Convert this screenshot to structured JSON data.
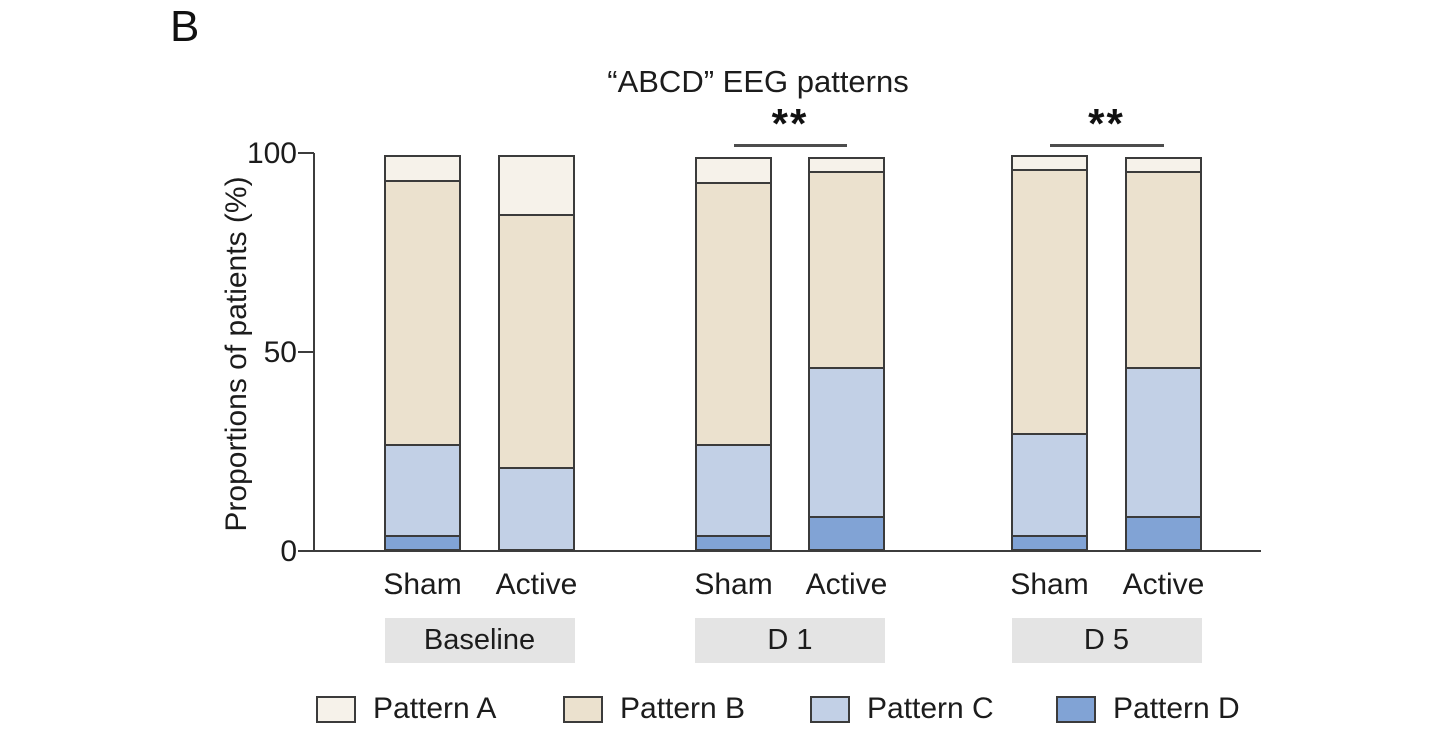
{
  "panel_label": "B",
  "title": "“ABCD” EEG patterns",
  "y_axis": {
    "label": "Proportions of patients (%)",
    "tick_labels": [
      "100",
      "50",
      "0"
    ]
  },
  "x_axis": {
    "condition_labels": [
      "Sham",
      "Active",
      "Sham",
      "Active",
      "Sham",
      "Active"
    ],
    "group_labels": [
      "Baseline",
      "D 1",
      "D 5"
    ]
  },
  "significance": [
    {
      "group": "D 1",
      "label": "**"
    },
    {
      "group": "D 5",
      "label": "**"
    }
  ],
  "legend": {
    "items": [
      {
        "label": "Pattern A",
        "color": "#f6f2ea"
      },
      {
        "label": "Pattern B",
        "color": "#ebe1ce"
      },
      {
        "label": "Pattern C",
        "color": "#c2d0e6"
      },
      {
        "label": "Pattern D",
        "color": "#81a3d5"
      }
    ]
  },
  "colors": {
    "pattern_a": "#f6f2ea",
    "pattern_b": "#ebe1ce",
    "pattern_c": "#c2d0e6",
    "pattern_d": "#81a3d5",
    "bar_border": "#3b3b3b",
    "axis": "#3c3c3c",
    "group_box_bg": "#e4e4e4"
  },
  "chart_data": {
    "type": "bar",
    "stacked": true,
    "title": "“ABCD” EEG patterns",
    "ylabel": "Proportions of patients (%)",
    "xlabel": "",
    "ylim": [
      0,
      100
    ],
    "yticks": [
      0,
      50,
      100
    ],
    "grid": false,
    "legend_position": "bottom",
    "categories": [
      "Baseline Sham",
      "Baseline Active",
      "D 1 Sham",
      "D 1 Active",
      "D 5 Sham",
      "D 5 Active"
    ],
    "x_tick_labels": [
      "Sham",
      "Active",
      "Sham",
      "Active",
      "Sham",
      "Active"
    ],
    "group_labels": [
      "Baseline",
      "D 1",
      "D 5"
    ],
    "series": [
      {
        "name": "Pattern A",
        "color": "#f6f2ea",
        "values": [
          6,
          14.5,
          6,
          3,
          3,
          3
        ]
      },
      {
        "name": "Pattern B",
        "color": "#ebe1ce",
        "values": [
          67.5,
          64.5,
          67,
          50,
          67.5,
          50
        ]
      },
      {
        "name": "Pattern C",
        "color": "#c2d0e6",
        "values": [
          23,
          20.5,
          23,
          38,
          26,
          38
        ]
      },
      {
        "name": "Pattern D",
        "color": "#81a3d5",
        "values": [
          3,
          0,
          3,
          8,
          3,
          8
        ]
      }
    ],
    "annotations": [
      {
        "text": "**",
        "between": [
          "D 1 Sham",
          "D 1 Active"
        ]
      },
      {
        "text": "**",
        "between": [
          "D 5 Sham",
          "D 5 Active"
        ]
      }
    ]
  }
}
